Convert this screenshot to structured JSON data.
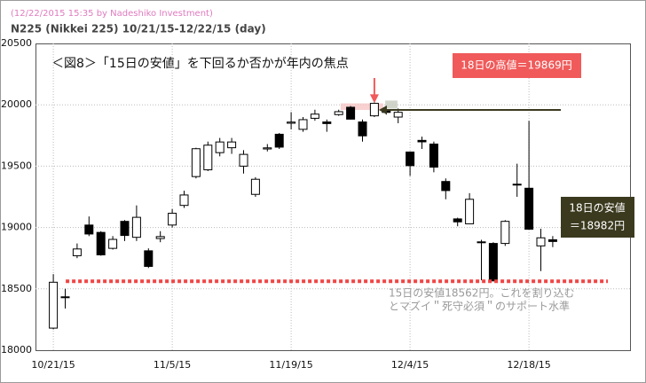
{
  "chart_data": {
    "type": "candlestick",
    "header": "(12/22/2015 15:35 by Nadeshiko Investment)",
    "subtitle": "N225 (Nikkei 225)  10/21/15-12/22/15 (day)",
    "title": "＜図8＞「15日の安値」を下回るか否かが年内の焦点",
    "categories": [
      "10/21/15",
      null,
      null,
      null,
      null,
      null,
      null,
      null,
      null,
      null,
      "11/5/15",
      null,
      null,
      null,
      null,
      null,
      null,
      null,
      null,
      null,
      "11/19/15",
      null,
      null,
      null,
      null,
      null,
      null,
      null,
      null,
      null,
      "12/4/15",
      null,
      null,
      null,
      null,
      null,
      null,
      null,
      null,
      null,
      "12/18/15",
      null,
      null
    ],
    "open": [
      18180,
      18430,
      18770,
      19020,
      18960,
      18830,
      19050,
      18920,
      18810,
      18910,
      19020,
      19180,
      19415,
      19470,
      19610,
      19650,
      19500,
      19270,
      19640,
      19760,
      19850,
      19800,
      19890,
      19860,
      19920,
      19980,
      19860,
      19910,
      19960,
      19900,
      19615,
      19710,
      19680,
      19375,
      19070,
      19030,
      18880,
      18870,
      18870,
      19350,
      19320,
      18850,
      18900
    ],
    "high": [
      18620,
      18500,
      18870,
      19090,
      18970,
      18930,
      19060,
      19180,
      18830,
      18970,
      19150,
      19300,
      19650,
      19700,
      19730,
      19730,
      19630,
      19410,
      19680,
      19770,
      19940,
      19900,
      19960,
      19880,
      19960,
      19990,
      19880,
      20020,
      19990,
      19970,
      19620,
      19740,
      19700,
      19400,
      19080,
      19280,
      18900,
      18880,
      19060,
      19520,
      19869,
      18990,
      18930
    ],
    "low": [
      18170,
      18340,
      18750,
      18930,
      18770,
      18820,
      18890,
      18890,
      18670,
      18880,
      19000,
      19160,
      19400,
      19460,
      19580,
      19600,
      19440,
      19250,
      19620,
      19640,
      19800,
      19780,
      19870,
      19780,
      19910,
      19880,
      19700,
      19900,
      19920,
      19850,
      19420,
      19640,
      19450,
      19230,
      19010,
      19030,
      18570,
      18562,
      18850,
      19250,
      18982,
      18645,
      18840
    ],
    "close": [
      18554,
      18435,
      18825,
      18947,
      18777,
      18903,
      18935,
      19083,
      18683,
      18926,
      19116,
      19265,
      19642,
      19671,
      19697,
      19697,
      19596,
      19393,
      19649,
      19655,
      19859,
      19879,
      19924,
      19847,
      19944,
      19883,
      19747,
      20012,
      19938,
      19939,
      19504,
      19698,
      19492,
      19301,
      19046,
      19230,
      18883,
      18565,
      19050,
      19353,
      18986,
      18916,
      18886
    ],
    "up_color": "#ffffff",
    "down_color": "#000000",
    "ylim": [
      18000,
      20500
    ],
    "yticks": [
      18000,
      18500,
      19000,
      19500,
      20000,
      20500
    ],
    "grid": true,
    "annotations": {
      "high_label": "18日の高値＝19869円",
      "low_label_1": "18日の安値",
      "low_label_2": "＝18982円",
      "support_level": 18562,
      "support_color": "#f04545",
      "support_text_1": "15日の安値18562円。これを割り込む",
      "support_text_2": "とマズイ＂死守必須＂のサポート水準"
    }
  }
}
